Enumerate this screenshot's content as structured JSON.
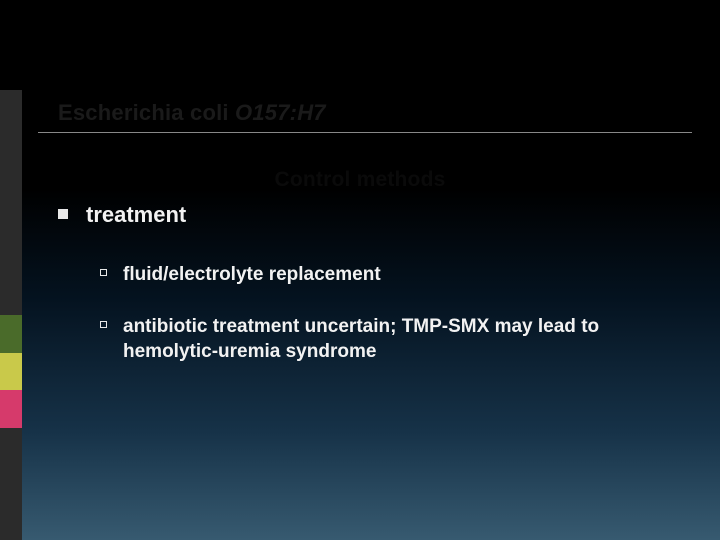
{
  "background": {
    "gradient_stops": [
      "#000000",
      "#000000",
      "#04121f",
      "#163248",
      "#375a70"
    ]
  },
  "accent_bar": {
    "segments": [
      {
        "color": "#2b2b2b",
        "flex": 6
      },
      {
        "color": "#4a6b2a",
        "flex": 1
      },
      {
        "color": "#c9c94a",
        "flex": 1
      },
      {
        "color": "#d63a6b",
        "flex": 1
      },
      {
        "color": "#2b2b2b",
        "flex": 3
      }
    ]
  },
  "title": {
    "normal": "Escherichia coli ",
    "italic": "O157:H7",
    "color": "#1a1a1a",
    "fontsize": 22,
    "underline_color": "#888888"
  },
  "subtitle": {
    "text": "Control methods",
    "color": "#0a0a0a",
    "fontsize": 21
  },
  "body": {
    "text_color": "#f2f2f2",
    "lvl1": {
      "bullet_style": "filled-square",
      "fontsize": 22,
      "items": [
        {
          "text": "treatment"
        }
      ]
    },
    "lvl2": {
      "bullet_style": "hollow-square",
      "fontsize": 19,
      "items": [
        {
          "text": "fluid/electrolyte replacement"
        },
        {
          "text": "antibiotic treatment uncertain; TMP-SMX may lead to hemolytic-uremia syndrome"
        }
      ]
    }
  }
}
